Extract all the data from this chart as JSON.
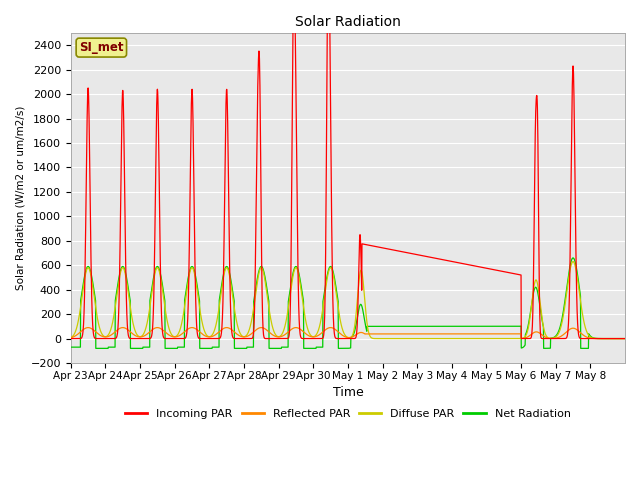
{
  "title": "Solar Radiation",
  "ylabel": "Solar Radiation (W/m2 or um/m2/s)",
  "xlabel": "Time",
  "annotation": "SI_met",
  "ylim": [
    -200,
    2500
  ],
  "yticks": [
    -200,
    0,
    200,
    400,
    600,
    800,
    1000,
    1200,
    1400,
    1600,
    1800,
    2000,
    2200,
    2400
  ],
  "x_labels": [
    "Apr 23",
    "Apr 24",
    "Apr 25",
    "Apr 26",
    "Apr 27",
    "Apr 28",
    "Apr 29",
    "Apr 30",
    "May 1",
    "May 2",
    "May 3",
    "May 4",
    "May 5",
    "May 6",
    "May 7",
    "May 8"
  ],
  "colors": {
    "incoming": "#ff0000",
    "reflected": "#ff8800",
    "diffuse": "#cccc00",
    "net": "#00cc00",
    "background": "#e8e8e8",
    "grid": "#ffffff"
  },
  "legend": [
    {
      "label": "Incoming PAR",
      "color": "#ff0000"
    },
    {
      "label": "Reflected PAR",
      "color": "#ff8800"
    },
    {
      "label": "Diffuse PAR",
      "color": "#cccc00"
    },
    {
      "label": "Net Radiation",
      "color": "#00cc00"
    }
  ],
  "n_days": 16,
  "n_per_day": 144
}
